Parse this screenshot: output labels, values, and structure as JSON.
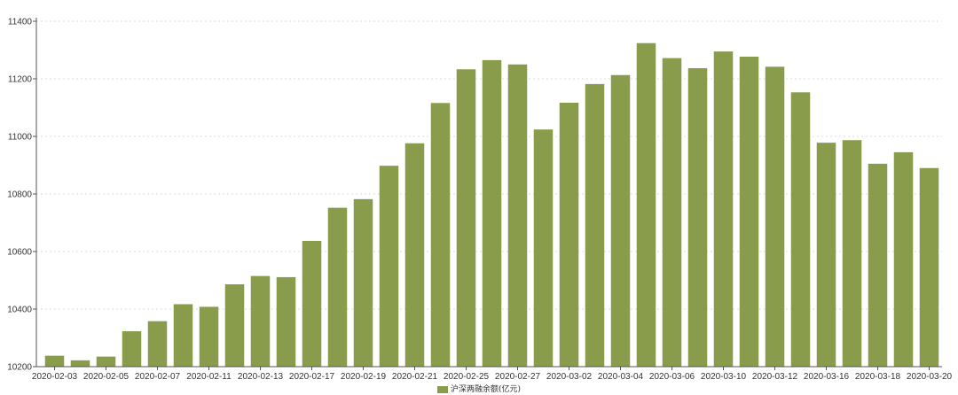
{
  "chart_data": {
    "type": "bar",
    "categories": [
      "2020-02-03",
      "2020-02-04",
      "2020-02-05",
      "2020-02-06",
      "2020-02-07",
      "2020-02-10",
      "2020-02-11",
      "2020-02-12",
      "2020-02-13",
      "2020-02-14",
      "2020-02-17",
      "2020-02-18",
      "2020-02-19",
      "2020-02-20",
      "2020-02-21",
      "2020-02-24",
      "2020-02-25",
      "2020-02-26",
      "2020-02-27",
      "2020-02-28",
      "2020-03-02",
      "2020-03-03",
      "2020-03-04",
      "2020-03-05",
      "2020-03-06",
      "2020-03-09",
      "2020-03-10",
      "2020-03-11",
      "2020-03-12",
      "2020-03-13",
      "2020-03-16",
      "2020-03-17",
      "2020-03-18",
      "2020-03-19",
      "2020-03-20"
    ],
    "x_tick_labels": [
      "2020-02-03",
      "2020-02-05",
      "2020-02-07",
      "2020-02-11",
      "2020-02-13",
      "2020-02-17",
      "2020-02-19",
      "2020-02-21",
      "2020-02-25",
      "2020-02-27",
      "2020-03-02",
      "2020-03-04",
      "2020-03-06",
      "2020-03-10",
      "2020-03-12",
      "2020-03-16",
      "2020-03-18",
      "2020-03-20"
    ],
    "series": [
      {
        "name": "沪深两融余额(亿元)",
        "color": "#889c4b",
        "values": [
          10238,
          10222,
          10235,
          10323,
          10358,
          10417,
          10408,
          10486,
          10515,
          10511,
          10637,
          10752,
          10782,
          10898,
          10976,
          11116,
          11233,
          11265,
          11250,
          11024,
          11117,
          11182,
          11213,
          11324,
          11272,
          11237,
          11295,
          11277,
          11242,
          11153,
          10978,
          10987,
          10905,
          10945,
          10890
        ]
      }
    ],
    "ylim": [
      10200,
      11400
    ],
    "y_ticks": [
      10200,
      10400,
      10600,
      10800,
      11000,
      11200,
      11400
    ],
    "grid": true,
    "legend_position": "bottom-center",
    "title": "",
    "xlabel": "",
    "ylabel": ""
  }
}
